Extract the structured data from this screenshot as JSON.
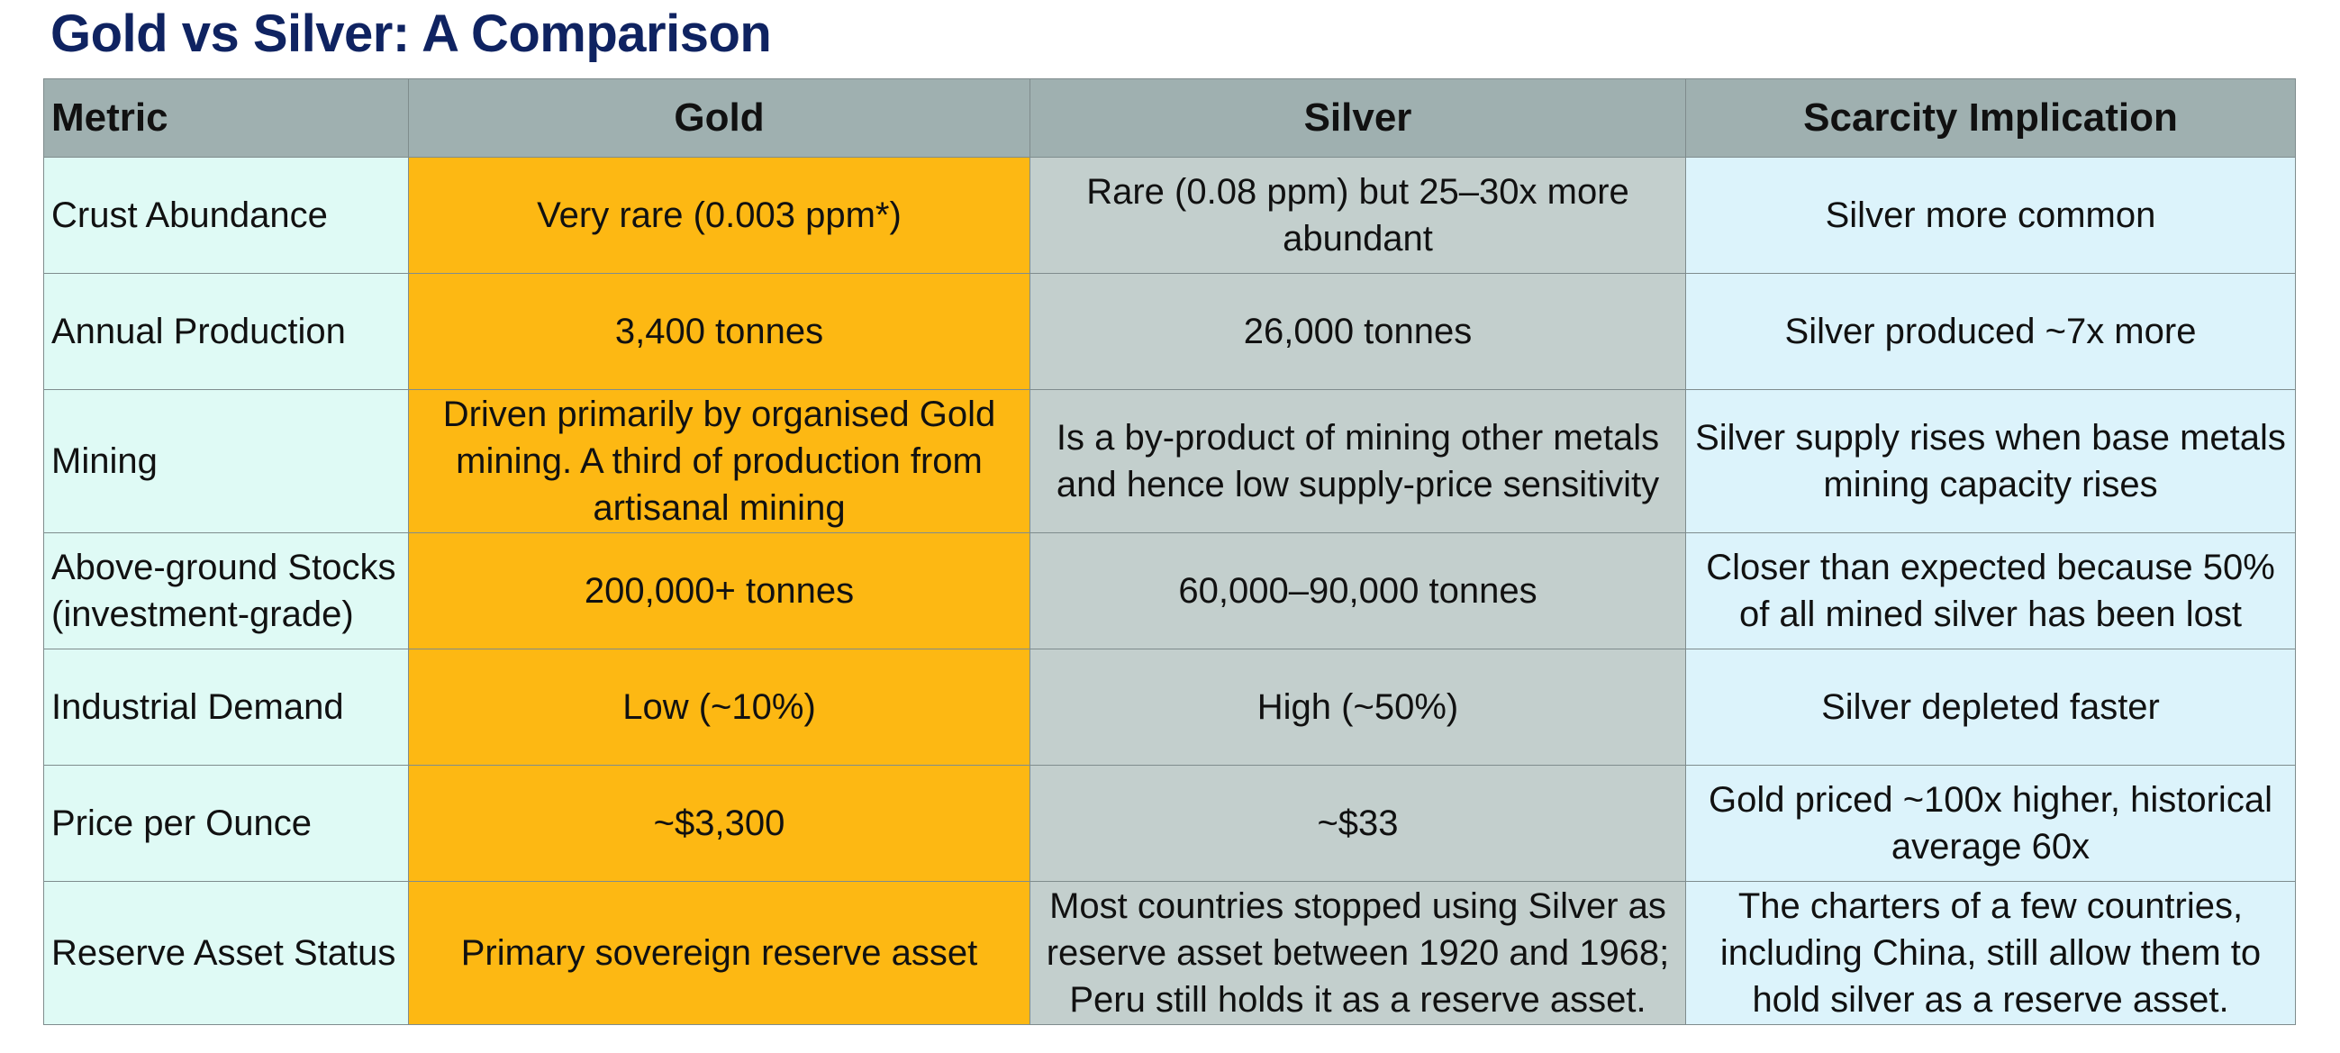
{
  "title": "Gold vs Silver: A Comparison",
  "headers": {
    "metric": "Metric",
    "gold": "Gold",
    "silver": "Silver",
    "implication": "Scarcity Implication"
  },
  "rows": [
    {
      "metric": "Crust Abundance",
      "gold": "Very rare (0.003 ppm*)",
      "silver": "Rare (0.08 ppm) but 25–30x more abundant",
      "implication": "Silver more common"
    },
    {
      "metric": "Annual Production",
      "gold": "3,400 tonnes",
      "silver": "26,000 tonnes",
      "implication": "Silver produced ~7x more"
    },
    {
      "metric": "Mining",
      "gold": "Driven primarily by organised Gold mining. A third of production from artisanal mining",
      "silver": "Is a by-product of mining other metals and hence low supply-price sensitivity",
      "implication": "Silver supply rises when base metals mining capacity rises"
    },
    {
      "metric": "Above-ground Stocks (investment-grade)",
      "gold": "200,000+ tonnes",
      "silver": "60,000–90,000 tonnes",
      "implication": "Closer than expected because 50% of all mined silver has been lost"
    },
    {
      "metric": "Industrial Demand",
      "gold": "Low (~10%)",
      "silver": "High (~50%)",
      "implication": "Silver depleted faster"
    },
    {
      "metric": "Price per Ounce",
      "gold": "~$3,300",
      "silver": "~$33",
      "implication": "Gold priced ~100x higher, historical average 60x"
    },
    {
      "metric": "Reserve Asset Status",
      "gold": "Primary sovereign reserve asset",
      "silver": "Most countries stopped using Silver as reserve asset between 1920 and 1968; Peru still holds it as a reserve asset.",
      "implication": "The charters of a few countries, including China, still allow them to hold silver as a reserve asset."
    }
  ],
  "colors": {
    "title": "#0f2361",
    "header_bg": "#9fb0b0",
    "metric_bg": "#dffaf5",
    "gold_bg": "#fdb813",
    "silver_bg": "#c3cfcd",
    "implication_bg": "#dcf3fb"
  }
}
